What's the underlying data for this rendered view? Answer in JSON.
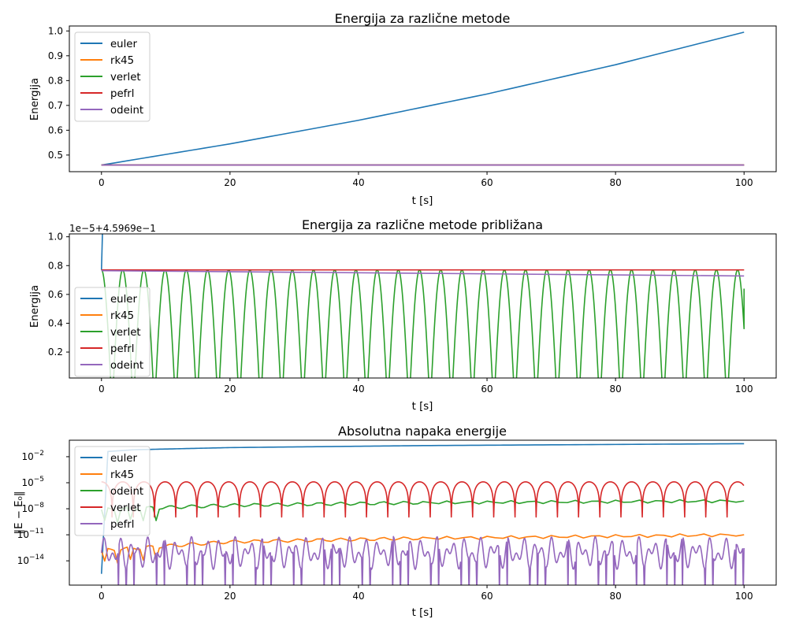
{
  "chart_data": [
    {
      "type": "line",
      "title": "Energija za različne metode",
      "xlabel": "t [s]",
      "ylabel": "Energija",
      "xlim": [
        -5,
        105
      ],
      "ylim": [
        0.433,
        1.02
      ],
      "xticks": [
        0,
        20,
        40,
        60,
        80,
        100
      ],
      "xtick_labels": [
        "0",
        "20",
        "40",
        "60",
        "80",
        "100"
      ],
      "yticks": [
        0.5,
        0.6,
        0.7,
        0.8,
        0.9,
        1.0
      ],
      "ytick_labels": [
        "0.5",
        "0.6",
        "0.7",
        "0.8",
        "0.9",
        "1.0"
      ],
      "legend": "top-left",
      "grid": false,
      "series": [
        {
          "name": "euler",
          "color": "#1f77b4",
          "x": [
            0,
            20,
            40,
            60,
            80,
            100
          ],
          "y": [
            0.4597,
            0.545,
            0.64,
            0.746,
            0.864,
            0.995
          ]
        },
        {
          "name": "rk45",
          "color": "#ff7f0e",
          "x": [
            0,
            100
          ],
          "y": [
            0.4597,
            0.4597
          ]
        },
        {
          "name": "verlet",
          "color": "#2ca02c",
          "x": [
            0,
            100
          ],
          "y": [
            0.4597,
            0.4597
          ]
        },
        {
          "name": "pefrl",
          "color": "#d62728",
          "x": [
            0,
            100
          ],
          "y": [
            0.4597,
            0.4597
          ]
        },
        {
          "name": "odeint",
          "color": "#9467bd",
          "x": [
            0,
            100
          ],
          "y": [
            0.4597,
            0.4597
          ]
        }
      ]
    },
    {
      "type": "line",
      "title": "Energija za različne metode približana",
      "offset_label": "1e−5+4.5969e−1",
      "xlabel": "t [s]",
      "ylabel": "Energija",
      "xlim": [
        -5,
        105
      ],
      "ylim": [
        0.02,
        1.02
      ],
      "xticks": [
        0,
        20,
        40,
        60,
        80,
        100
      ],
      "xtick_labels": [
        "0",
        "20",
        "40",
        "60",
        "80",
        "100"
      ],
      "yticks": [
        0.2,
        0.4,
        0.6,
        0.8,
        1.0
      ],
      "ytick_labels": [
        "0.2",
        "0.4",
        "0.6",
        "0.8",
        "1.0"
      ],
      "legend": "center-left",
      "grid": false,
      "series": [
        {
          "name": "euler",
          "color": "#1f77b4",
          "x": [
            0,
            0.15
          ],
          "y": [
            0.77,
            1.02
          ]
        },
        {
          "name": "rk45",
          "color": "#ff7f0e",
          "x": [
            0,
            100
          ],
          "y": [
            0.77,
            0.77
          ]
        },
        {
          "name": "verlet",
          "color": "#2ca02c",
          "period": 3.3,
          "max": 0.77,
          "min": -0.2,
          "t_end": 100,
          "y_end": 0.64
        },
        {
          "name": "pefrl",
          "color": "#d62728",
          "x": [
            0,
            100
          ],
          "y": [
            0.77,
            0.77
          ]
        },
        {
          "name": "odeint",
          "color": "#9467bd",
          "x": [
            0,
            100
          ],
          "y": [
            0.765,
            0.728
          ]
        }
      ]
    },
    {
      "type": "line",
      "title": "Absolutna napaka energije",
      "xlabel": "t [s]",
      "ylabel": "‖E − E₀‖",
      "yscale": "log",
      "xlim": [
        -5,
        105
      ],
      "ylim_log10": [
        -16.8,
        -0.1
      ],
      "xticks": [
        0,
        20,
        40,
        60,
        80,
        100
      ],
      "xtick_labels": [
        "0",
        "20",
        "40",
        "60",
        "80",
        "100"
      ],
      "yticks_log10": [
        -14,
        -11,
        -8,
        -5,
        -2
      ],
      "ytick_labels": [
        "10",
        "10",
        "10",
        "10",
        "10"
      ],
      "ytick_exponents": [
        "−14",
        "−11",
        "−8",
        "−5",
        "−2"
      ],
      "legend": "top-left",
      "grid": false,
      "series": [
        {
          "name": "euler",
          "color": "#1f77b4",
          "x": [
            0,
            1,
            5,
            20,
            50,
            100
          ],
          "log10_y": [
            -15.5,
            -1.4,
            -1.2,
            -0.95,
            -0.72,
            -0.5
          ]
        },
        {
          "name": "rk45",
          "color": "#ff7f0e",
          "x": [
            0,
            20,
            50,
            100
          ],
          "log10_y": [
            -12.8,
            -11.8,
            -11.4,
            -11.0
          ]
        },
        {
          "name": "odeint",
          "color": "#2ca02c",
          "x": [
            0,
            20,
            50,
            100
          ],
          "log10_y": [
            -8.1,
            -7.6,
            -7.3,
            -7.1
          ]
        },
        {
          "name": "verlet",
          "color": "#d62728",
          "period": 3.3,
          "log10_peak": -4.9,
          "log10_floor": -15.5
        },
        {
          "name": "pefrl",
          "color": "#9467bd",
          "log10_band": [
            -15.0,
            -11.2
          ]
        }
      ]
    }
  ]
}
